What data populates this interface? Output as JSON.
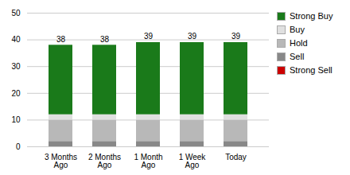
{
  "chart_data": {
    "type": "bar",
    "stacked": true,
    "categories": [
      "3 Months\nAgo",
      "2 Months\nAgo",
      "1 Month\nAgo",
      "1 Week\nAgo",
      "Today"
    ],
    "series": [
      {
        "name": "Strong Sell",
        "color": "#cc0000",
        "values": [
          0,
          0,
          0,
          0,
          0
        ]
      },
      {
        "name": "Sell",
        "color": "#888888",
        "values": [
          2,
          2,
          2,
          2,
          2
        ]
      },
      {
        "name": "Hold",
        "color": "#b8b8b8",
        "values": [
          8,
          8,
          8,
          8,
          8
        ]
      },
      {
        "name": "Buy",
        "color": "#e0e0e0",
        "values": [
          2,
          2,
          2,
          2,
          2
        ]
      },
      {
        "name": "Strong Buy",
        "color": "#1a7a1a",
        "values": [
          26,
          26,
          27,
          27,
          27
        ]
      }
    ],
    "totals": [
      38,
      38,
      39,
      39,
      39
    ],
    "ylim": [
      0,
      50
    ],
    "yticks": [
      0,
      10,
      20,
      30,
      40,
      50
    ],
    "grid": true,
    "legend": "right"
  }
}
